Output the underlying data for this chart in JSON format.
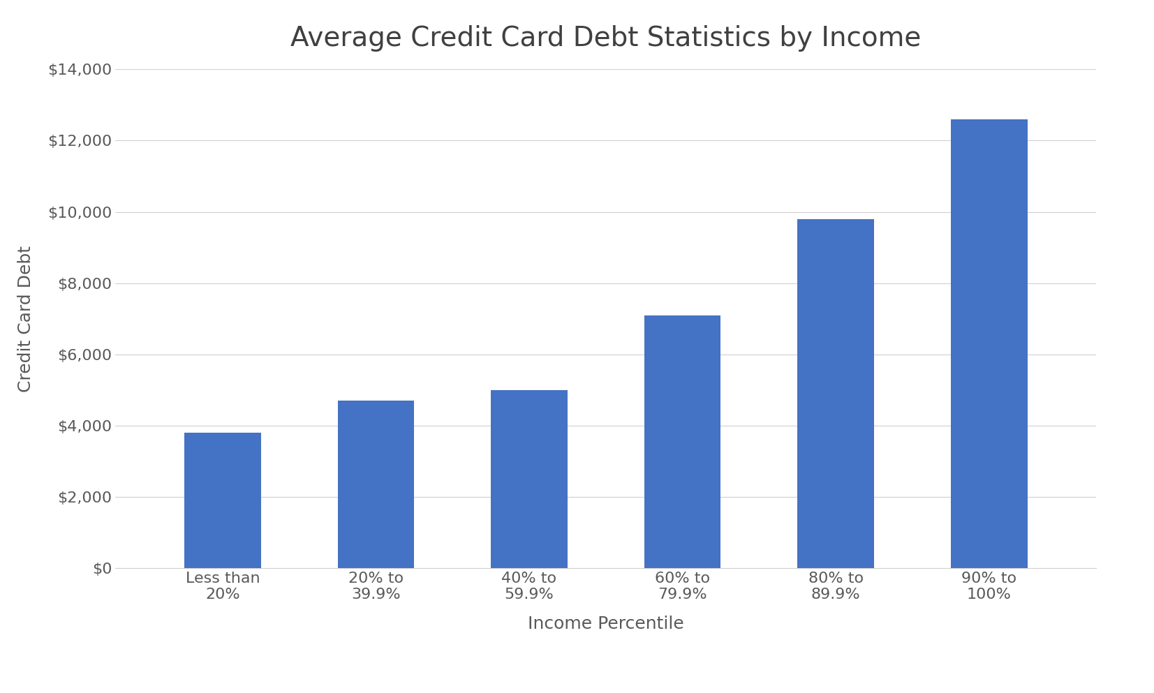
{
  "title": "Average Credit Card Debt Statistics by Income",
  "xlabel": "Income Percentile",
  "ylabel": "Credit Card Debt",
  "categories": [
    "Less than\n20%",
    "20% to\n39.9%",
    "40% to\n59.9%",
    "60% to\n79.9%",
    "80% to\n89.9%",
    "90% to\n100%"
  ],
  "values": [
    3800,
    4700,
    5000,
    7100,
    9800,
    12600
  ],
  "bar_color": "#4472C4",
  "ylim": [
    0,
    14000
  ],
  "yticks": [
    0,
    2000,
    4000,
    6000,
    8000,
    10000,
    12000,
    14000
  ],
  "background_color": "#ffffff",
  "title_fontsize": 28,
  "axis_label_fontsize": 18,
  "tick_fontsize": 16,
  "bar_width": 0.5,
  "grid_color": "#d0d0d0",
  "text_color": "#595959",
  "title_color": "#404040"
}
